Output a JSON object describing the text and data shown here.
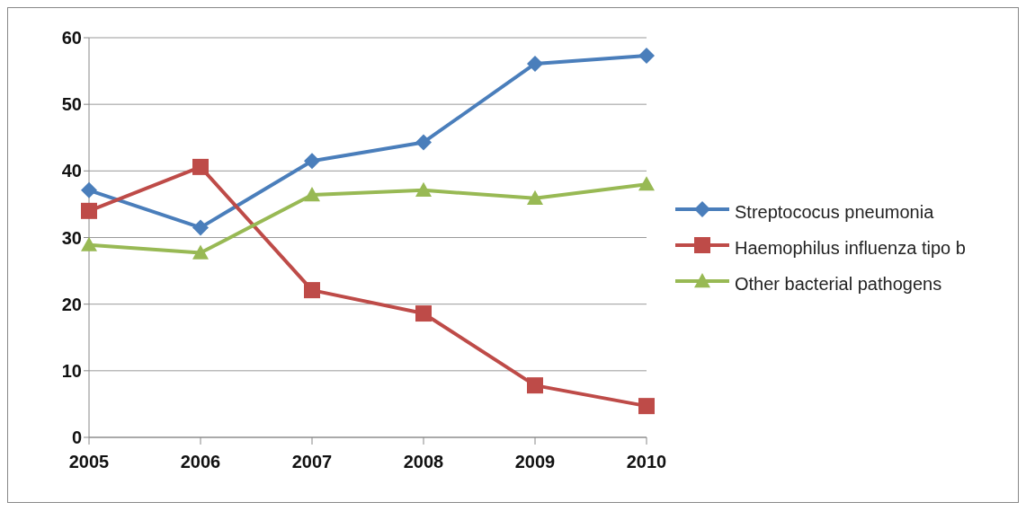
{
  "chart_data": {
    "type": "line",
    "categories": [
      "2005",
      "2006",
      "2007",
      "2008",
      "2009",
      "2010"
    ],
    "series": [
      {
        "name": "Streptococus pneumonia",
        "color": "#4a7ebb",
        "marker": "diamond",
        "values": [
          37.1,
          31.5,
          41.5,
          44.3,
          56.1,
          57.3
        ]
      },
      {
        "name": "Haemophilus influenza tipo b",
        "color": "#be4b48",
        "marker": "square",
        "values": [
          34.0,
          40.6,
          22.1,
          18.6,
          7.8,
          4.7
        ]
      },
      {
        "name": "Other bacterial pathogens",
        "color": "#98b954",
        "marker": "triangle",
        "values": [
          28.9,
          27.7,
          36.4,
          37.1,
          35.9,
          38.0
        ]
      }
    ],
    "ylim": [
      0,
      60
    ],
    "yticks": [
      0,
      10,
      20,
      30,
      40,
      50,
      60
    ],
    "grid": "y",
    "legend": "right",
    "line_style": "solid"
  }
}
